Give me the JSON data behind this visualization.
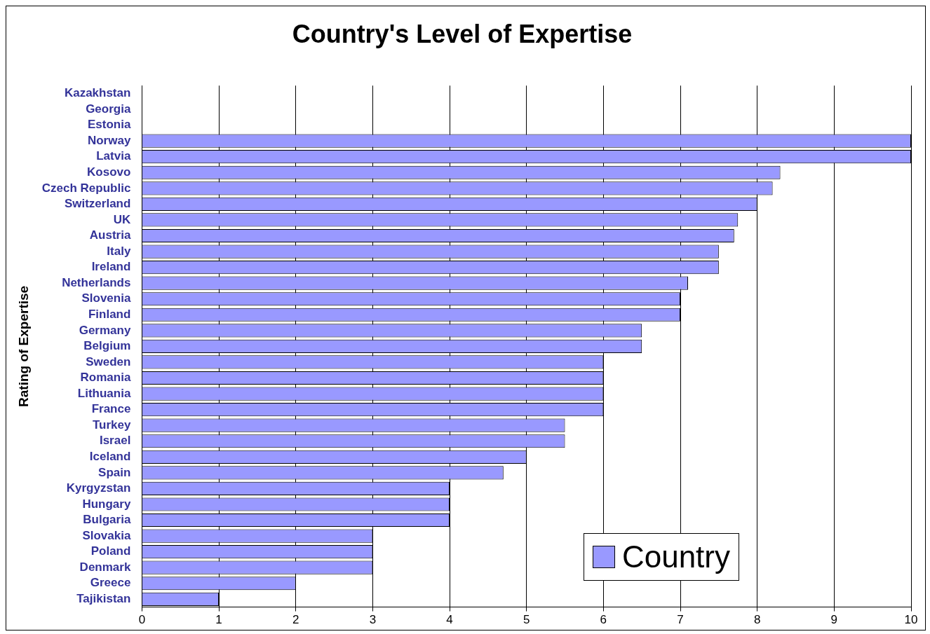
{
  "chart_data": {
    "type": "bar",
    "orientation": "horizontal",
    "title": "Country's Level of Expertise",
    "ylabel": "Rating of Expertise",
    "categories": [
      "Kazakhstan",
      "Georgia",
      "Estonia",
      "Norway",
      "Latvia",
      "Kosovo",
      "Czech Republic",
      "Switzerland",
      "UK",
      "Austria",
      "Italy",
      "Ireland",
      "Netherlands",
      "Slovenia",
      "Finland",
      "Germany",
      "Belgium",
      "Sweden",
      "Romania",
      "Lithuania",
      "France",
      "Turkey",
      "Israel",
      "Iceland",
      "Spain",
      "Kyrgyzstan",
      "Hungary",
      "Bulgaria",
      "Slovakia",
      "Poland",
      "Denmark",
      "Greece",
      "Tajikistan"
    ],
    "series": [
      {
        "name": "Country",
        "color": "#9999ff",
        "values": [
          null,
          null,
          null,
          10,
          10,
          8.3,
          8.2,
          8,
          7.75,
          7.7,
          7.5,
          7.5,
          7.1,
          7,
          7,
          6.5,
          6.5,
          6,
          6,
          6,
          6,
          5.5,
          5.5,
          5,
          4.7,
          4,
          4,
          4,
          3,
          3,
          3,
          2,
          1
        ]
      }
    ],
    "xlim": [
      0,
      10
    ],
    "xticks": [
      0,
      1,
      2,
      3,
      4,
      5,
      6,
      7,
      8,
      9,
      10
    ],
    "grid": "x",
    "legend": "bottom right"
  }
}
